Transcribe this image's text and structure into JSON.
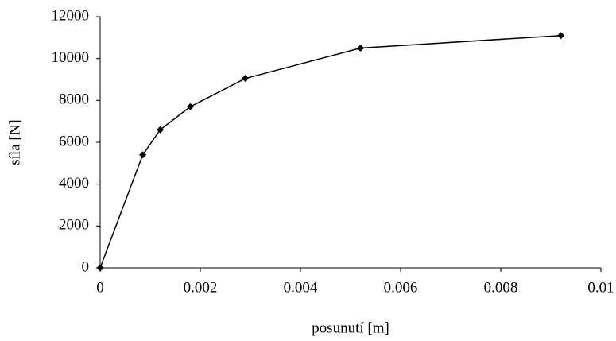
{
  "chart_data": {
    "type": "line",
    "x_label": "posunutí [m]",
    "y_label": "síla [N]",
    "x": [
      0,
      0.00085,
      0.0012,
      0.0018,
      0.0029,
      0.0052,
      0.0092
    ],
    "series": [
      {
        "name": "síla",
        "color": "#000000",
        "values": [
          0,
          5400,
          6600,
          7700,
          9050,
          10500,
          11100
        ]
      }
    ],
    "xlim": [
      0,
      0.01
    ],
    "xticks": [
      0,
      0.002,
      0.004,
      0.006,
      0.008,
      0.01
    ],
    "ylim": [
      0,
      12000
    ],
    "yticks": [
      0,
      2000,
      4000,
      6000,
      8000,
      10000,
      12000
    ],
    "grid": false,
    "markers": "diamond"
  }
}
